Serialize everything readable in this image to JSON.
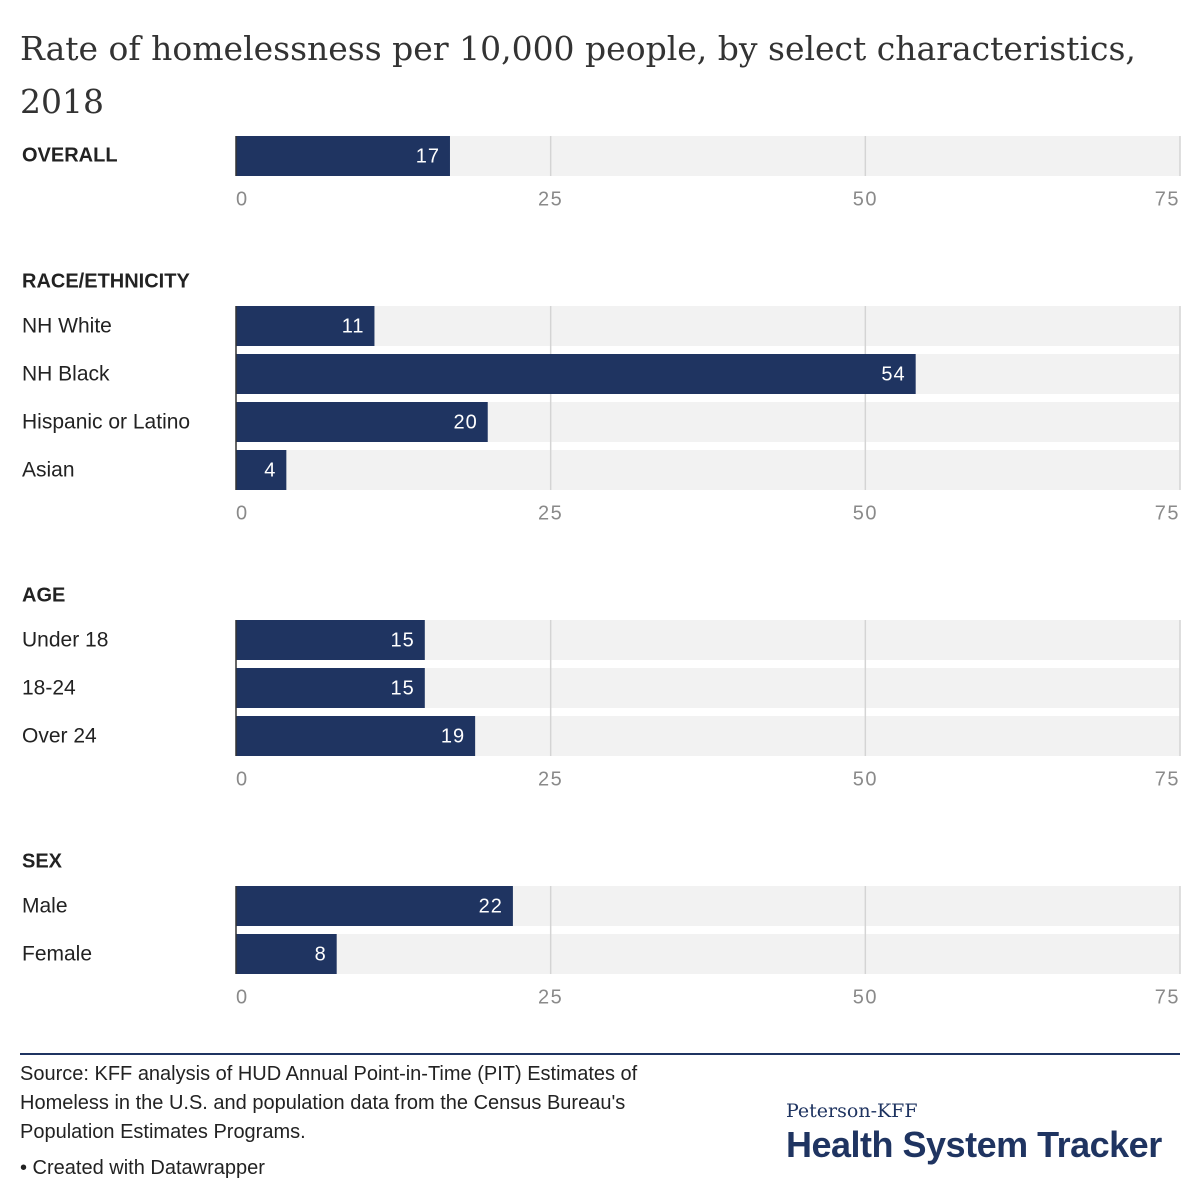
{
  "title": "Rate of homelessness per 10,000 people, by select characteristics, 2018",
  "source": "Source: KFF analysis of HUD Annual Point-in-Time (PIT) Estimates of Homeless in the U.S. and population data from the Census Bureau's Population Estimates Programs.",
  "credit": "• Created with Datawrapper",
  "brand": {
    "small": "Peterson-KFF",
    "big": "Health System Tracker"
  },
  "colors": {
    "bar": "#1f3461",
    "track": "#f2f2f2",
    "grid": "#d4d4d4",
    "tick": "#8a8a8a",
    "text": "#222222"
  },
  "chart_data": [
    {
      "type": "bar",
      "orientation": "horizontal",
      "group": "OVERALL",
      "categories": [
        ""
      ],
      "values": [
        17
      ],
      "xlim": [
        0,
        75
      ],
      "ticks": [
        0,
        25,
        50,
        75
      ]
    },
    {
      "type": "bar",
      "orientation": "horizontal",
      "group": "RACE/ETHNICITY",
      "categories": [
        "NH White",
        "NH Black",
        "Hispanic or Latino",
        "Asian"
      ],
      "values": [
        11,
        54,
        20,
        4
      ],
      "xlim": [
        0,
        75
      ],
      "ticks": [
        0,
        25,
        50,
        75
      ]
    },
    {
      "type": "bar",
      "orientation": "horizontal",
      "group": "AGE",
      "categories": [
        "Under 18",
        "18-24",
        "Over 24"
      ],
      "values": [
        15,
        15,
        19
      ],
      "xlim": [
        0,
        75
      ],
      "ticks": [
        0,
        25,
        50,
        75
      ]
    },
    {
      "type": "bar",
      "orientation": "horizontal",
      "group": "SEX",
      "categories": [
        "Male",
        "Female"
      ],
      "values": [
        22,
        8
      ],
      "xlim": [
        0,
        75
      ],
      "ticks": [
        0,
        25,
        50,
        75
      ]
    }
  ]
}
